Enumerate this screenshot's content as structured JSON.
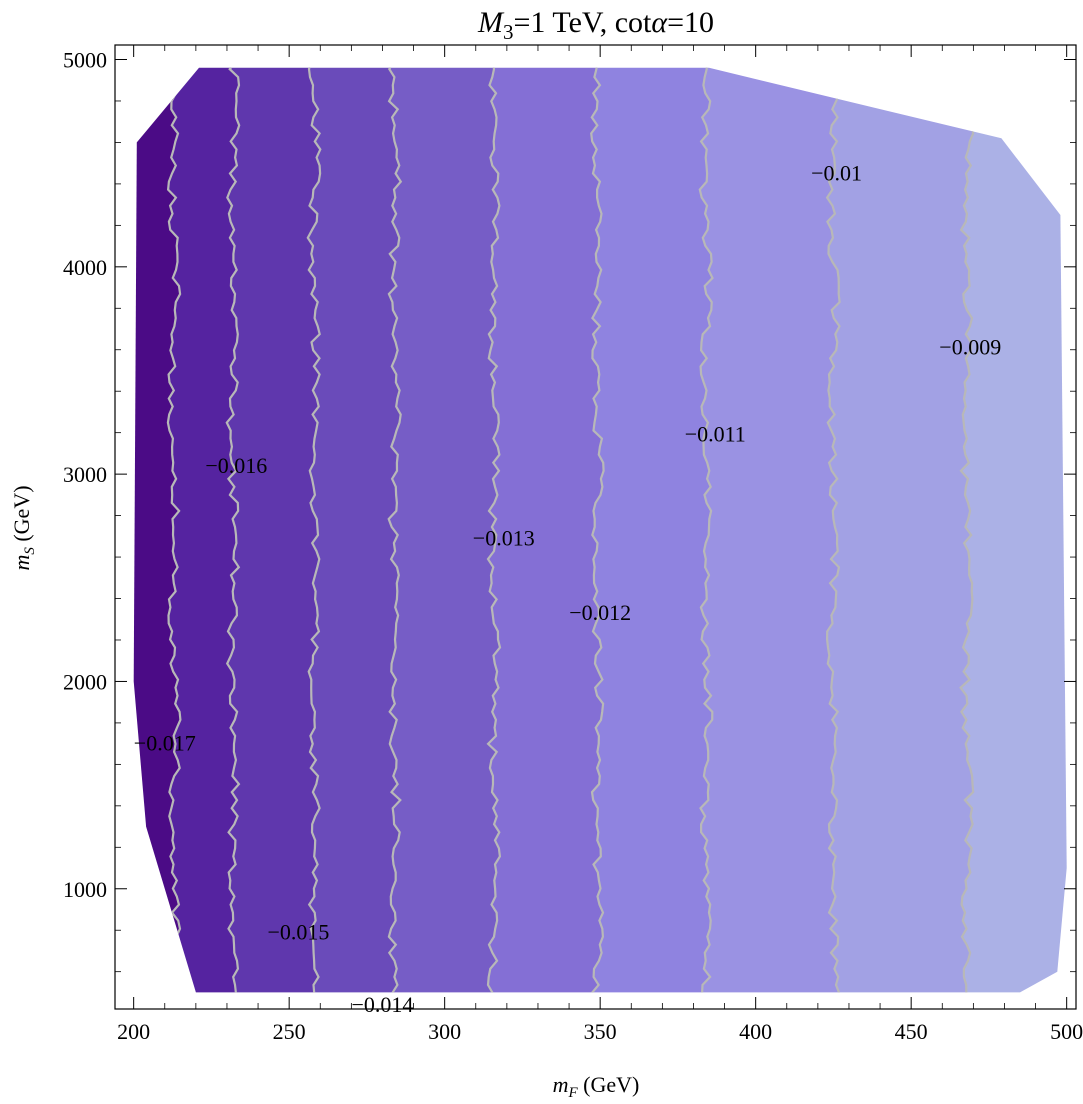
{
  "chart_data": {
    "type": "contour",
    "title": {
      "m_symbol": "M",
      "m_sub": "3",
      "part1": "=1 TeV, cot",
      "alpha": "α",
      "part2": "=10"
    },
    "xlabel": {
      "var": "m",
      "sub": "F",
      "unit": " (GeV)"
    },
    "ylabel": {
      "var": "m",
      "sub": "S",
      "unit": " (GeV)"
    },
    "xlim": [
      194,
      503
    ],
    "ylim": [
      420,
      5070
    ],
    "x_ticks": [
      "200",
      "250",
      "300",
      "350",
      "400",
      "450",
      "500"
    ],
    "y_ticks": [
      "1000",
      "2000",
      "3000",
      "4000",
      "5000"
    ],
    "region": [
      [
        220,
        500
      ],
      [
        204,
        1300
      ],
      [
        200,
        2000
      ],
      [
        201,
        4600
      ],
      [
        221,
        4960
      ],
      [
        385,
        4960
      ],
      [
        479,
        4620
      ],
      [
        498,
        4250
      ],
      [
        500,
        1100
      ],
      [
        497,
        600
      ],
      [
        485,
        500
      ]
    ],
    "bands": [
      {
        "value": -0.0175,
        "color": "#4b0b86"
      },
      {
        "value": -0.0165,
        "color": "#5523a0"
      },
      {
        "value": -0.0155,
        "color": "#5f37ad"
      },
      {
        "value": -0.0145,
        "color": "#6a4bba"
      },
      {
        "value": -0.0135,
        "color": "#765dc6"
      },
      {
        "value": -0.0125,
        "color": "#846fd5"
      },
      {
        "value": -0.0115,
        "color": "#8f83e0"
      },
      {
        "value": -0.0105,
        "color": "#9a92e3"
      },
      {
        "value": -0.0095,
        "color": "#a2a1e4"
      },
      {
        "value": -0.0085,
        "color": "#abb1e6"
      }
    ],
    "contours": [
      {
        "level": "−0.017",
        "x": 213
      },
      {
        "level": "−0.016",
        "x": 232
      },
      {
        "level": "−0.015",
        "x": 258
      },
      {
        "level": "−0.014",
        "x": 284
      },
      {
        "level": "−0.013",
        "x": 316
      },
      {
        "level": "−0.012",
        "x": 349
      },
      {
        "level": "−0.011",
        "x": 384
      },
      {
        "level": "−0.01",
        "x": 425
      },
      {
        "level": "−0.009",
        "x": 468
      }
    ],
    "contour_labels": [
      {
        "text": "−0.017",
        "x": 210,
        "y": 1700
      },
      {
        "text": "−0.016",
        "x": 233,
        "y": 3040
      },
      {
        "text": "−0.015",
        "x": 253,
        "y": 790
      },
      {
        "text": "−0.014",
        "x": 280,
        "y": 440
      },
      {
        "text": "−0.013",
        "x": 319,
        "y": 2690
      },
      {
        "text": "−0.012",
        "x": 350,
        "y": 2330
      },
      {
        "text": "−0.011",
        "x": 387,
        "y": 3190
      },
      {
        "text": "−0.01",
        "x": 426,
        "y": 4450
      },
      {
        "text": "−0.009",
        "x": 469,
        "y": 3610
      }
    ],
    "line_color": "#b8b8b8"
  }
}
